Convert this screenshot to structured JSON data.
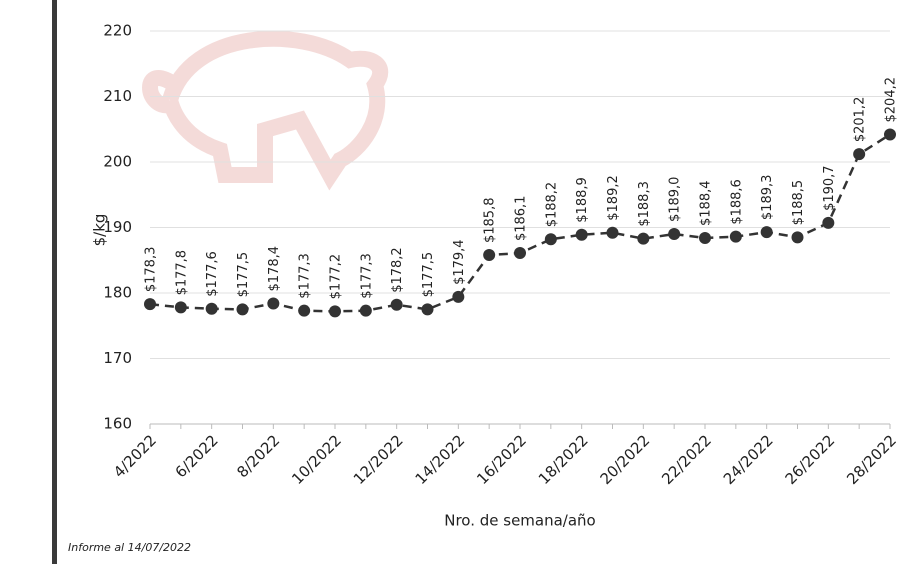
{
  "chart_data": {
    "type": "line",
    "y_label": "$/kg",
    "x_label": "Nro. de semana/año",
    "note": "Informe al 14/07/2022",
    "categories": [
      "4/2022",
      null,
      "6/2022",
      null,
      "8/2022",
      null,
      "10/2022",
      null,
      "12/2022",
      null,
      "14/2022",
      null,
      "16/2022",
      null,
      "18/2022",
      null,
      "20/2022",
      null,
      "22/2022",
      null,
      "24/2022",
      null,
      "26/2022",
      null,
      "28/2022"
    ],
    "series": [
      {
        "name": "$/kg",
        "color": "#333333",
        "values": [
          178.3,
          177.8,
          177.6,
          177.5,
          178.4,
          177.3,
          177.2,
          177.3,
          178.2,
          177.5,
          179.4,
          185.8,
          186.1,
          188.2,
          188.9,
          189.2,
          188.3,
          189.0,
          188.4,
          188.6,
          189.3,
          188.5,
          190.7,
          201.2,
          204.2
        ],
        "value_labels": [
          "$178,3",
          "$177,8",
          "$177,6",
          "$177,5",
          "$178,4",
          "$177,3",
          "$177,2",
          "$177,3",
          "$178,2",
          "$177,5",
          "$179,4",
          "$185,8",
          "$186,1",
          "$188,2",
          "$188,9",
          "$189,2",
          "$188,3",
          "$189,0",
          "$188,4",
          "$188,6",
          "$189,3",
          "$188,5",
          "$190,7",
          "$201,2",
          "$204,2"
        ]
      }
    ],
    "ylim": [
      160,
      220
    ],
    "yticks": [
      160,
      170,
      180,
      190,
      200,
      210,
      220
    ],
    "grid": true,
    "dashed": true
  }
}
